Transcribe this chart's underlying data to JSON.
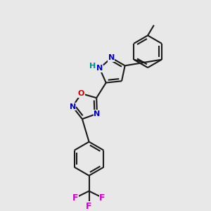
{
  "bg_color": "#e8e8e8",
  "bond_color": "#1a1a1a",
  "N_color": "#0000cc",
  "O_color": "#cc0000",
  "F_color": "#cc00cc",
  "H_color": "#008888",
  "bond_lw": 1.5,
  "figsize": [
    3.0,
    3.0
  ],
  "dpi": 100,
  "xlim": [
    0,
    10
  ],
  "ylim": [
    0,
    10
  ],
  "font_size": 9
}
